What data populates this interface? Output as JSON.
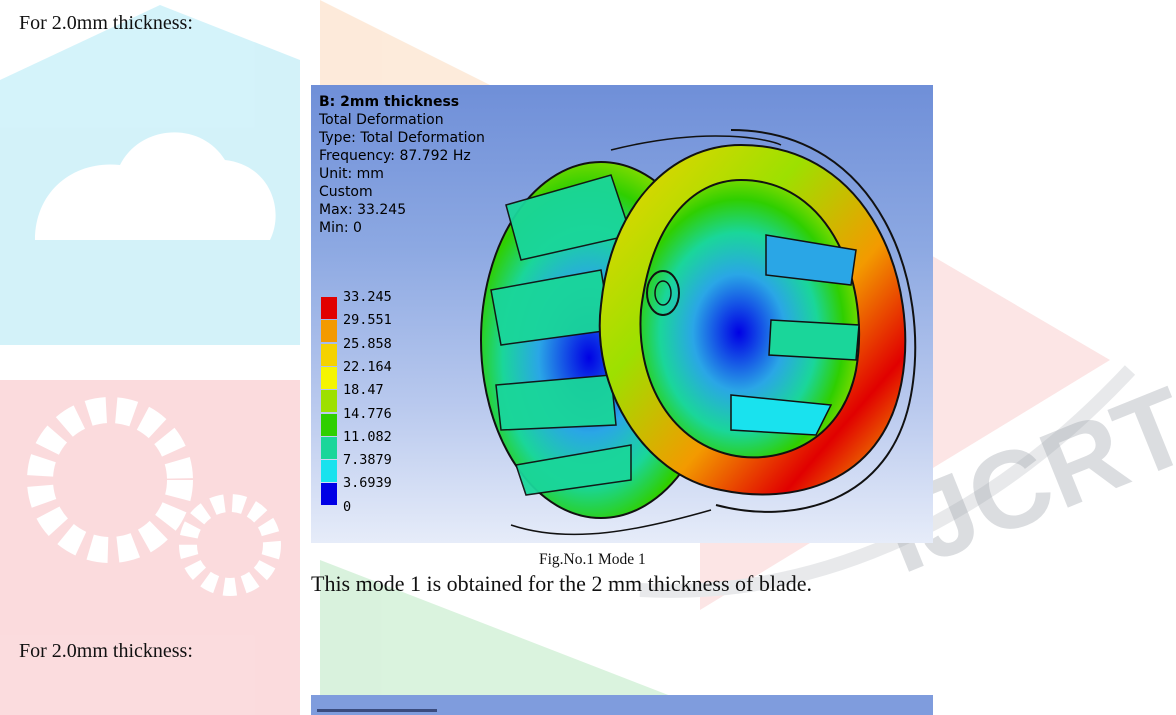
{
  "section_heading_1": "For 2.0mm thickness:",
  "figure": {
    "info_lines": [
      "B: 2mm thickness",
      "Total Deformation",
      "Type: Total Deformation",
      "Frequency: 87.792 Hz",
      "Unit: mm",
      "Custom",
      "Max: 33.245",
      "Min: 0"
    ],
    "legend": {
      "labels": [
        "33.245",
        "29.551",
        "25.858",
        "22.164",
        "18.47",
        "14.776",
        "11.082",
        "7.3879",
        "3.6939",
        "0"
      ],
      "colors": [
        "#e10000",
        "#f39a00",
        "#f5d200",
        "#f5f500",
        "#9de000",
        "#2fcf00",
        "#1ad69a",
        "#19e2ee",
        "#2aa6e6",
        "#0000e5"
      ]
    }
  },
  "caption": "Fig.No.1 Mode 1",
  "note": "This mode 1 is obtained for the 2 mm thickness of blade.",
  "section_heading_2": "For 2.0mm thickness:"
}
